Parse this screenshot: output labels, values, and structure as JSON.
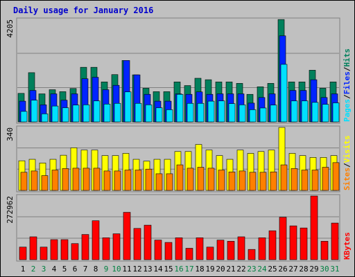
{
  "title": "Daily usage for January 2016",
  "colors": {
    "hits": "#00805c",
    "files": "#0024ff",
    "pages": "#00e0ff",
    "visits": "#ffff00",
    "sites": "#ff8000",
    "kbytes": "#ff0000",
    "weekday_label": "#000000",
    "weekend_label": "#008040",
    "panel_bg": "#c0c0c0",
    "grid": "#808080"
  },
  "legend": {
    "top": [
      "Pages",
      "/",
      "Files",
      "/",
      "Hits"
    ],
    "mid": [
      "Sites",
      "/",
      "Visits"
    ],
    "bottom": [
      "KBytes"
    ]
  },
  "chart_data": [
    {
      "type": "bar",
      "panel": "hits-files-pages",
      "ymax_label": "4205",
      "ylim": [
        0,
        4205
      ],
      "categories": [
        "1",
        "2",
        "3",
        "4",
        "5",
        "6",
        "7",
        "8",
        "9",
        "10",
        "11",
        "12",
        "13",
        "14",
        "15",
        "16",
        "17",
        "18",
        "19",
        "20",
        "21",
        "22",
        "23",
        "24",
        "25",
        "26",
        "27",
        "28",
        "29",
        "30",
        "31"
      ],
      "series": [
        {
          "name": "Hits",
          "values": [
            1170,
            2020,
            1150,
            1320,
            1240,
            1370,
            2240,
            2240,
            1640,
            1940,
            2520,
            1930,
            1380,
            1240,
            1240,
            1640,
            1490,
            1790,
            1730,
            1640,
            1640,
            1580,
            1130,
            1440,
            1580,
            4200,
            1640,
            1640,
            2120,
            1380,
            1640
          ]
        },
        {
          "name": "Files",
          "values": [
            850,
            1290,
            700,
            1150,
            890,
            1150,
            1770,
            1830,
            1320,
            1500,
            2520,
            1930,
            1130,
            850,
            850,
            1150,
            1130,
            1230,
            1130,
            1150,
            1150,
            1150,
            770,
            1000,
            1150,
            3530,
            1290,
            1290,
            1730,
            1000,
            1150
          ]
        },
        {
          "name": "Pages",
          "values": [
            430,
            890,
            330,
            650,
            580,
            690,
            700,
            860,
            730,
            760,
            1230,
            760,
            700,
            580,
            500,
            1130,
            760,
            760,
            850,
            860,
            750,
            700,
            500,
            570,
            690,
            2360,
            860,
            860,
            800,
            720,
            780
          ]
        }
      ]
    },
    {
      "type": "bar",
      "panel": "visits-sites",
      "ymax_label": "340",
      "ylim": [
        0,
        340
      ],
      "categories": [
        "1",
        "2",
        "3",
        "4",
        "5",
        "6",
        "7",
        "8",
        "9",
        "10",
        "11",
        "12",
        "13",
        "14",
        "15",
        "16",
        "17",
        "18",
        "19",
        "20",
        "21",
        "22",
        "23",
        "24",
        "25",
        "26",
        "27",
        "28",
        "29",
        "30",
        "31"
      ],
      "series": [
        {
          "name": "Visits",
          "values": [
            160,
            168,
            148,
            168,
            190,
            230,
            218,
            218,
            188,
            188,
            200,
            168,
            158,
            168,
            168,
            210,
            210,
            248,
            218,
            188,
            168,
            218,
            200,
            210,
            218,
            340,
            200,
            188,
            178,
            178,
            188
          ]
        },
        {
          "name": "Sites",
          "values": [
            98,
            105,
            80,
            110,
            118,
            120,
            120,
            120,
            105,
            105,
            110,
            110,
            115,
            90,
            90,
            138,
            120,
            125,
            120,
            110,
            100,
            105,
            98,
            98,
            100,
            138,
            118,
            110,
            110,
            125,
            150
          ]
        }
      ]
    },
    {
      "type": "bar",
      "panel": "kbytes",
      "ymax_label": "272962",
      "ylim": [
        0,
        272962
      ],
      "categories": [
        "1",
        "2",
        "3",
        "4",
        "5",
        "6",
        "7",
        "8",
        "9",
        "10",
        "11",
        "12",
        "13",
        "14",
        "15",
        "16",
        "17",
        "18",
        "19",
        "20",
        "21",
        "22",
        "23",
        "24",
        "25",
        "26",
        "27",
        "28",
        "29",
        "30",
        "31"
      ],
      "series": [
        {
          "name": "KBytes",
          "values": [
            54000,
            98000,
            54000,
            86000,
            86000,
            69000,
            108000,
            167000,
            94000,
            111000,
            203000,
            134000,
            148000,
            84000,
            74000,
            94000,
            49000,
            94000,
            54000,
            84000,
            79000,
            98000,
            44000,
            94000,
            124000,
            182000,
            145000,
            136000,
            272962,
            79000,
            157000
          ]
        }
      ]
    }
  ],
  "weekend_days": [
    "2",
    "3",
    "9",
    "10",
    "16",
    "17",
    "23",
    "24",
    "30",
    "31"
  ]
}
